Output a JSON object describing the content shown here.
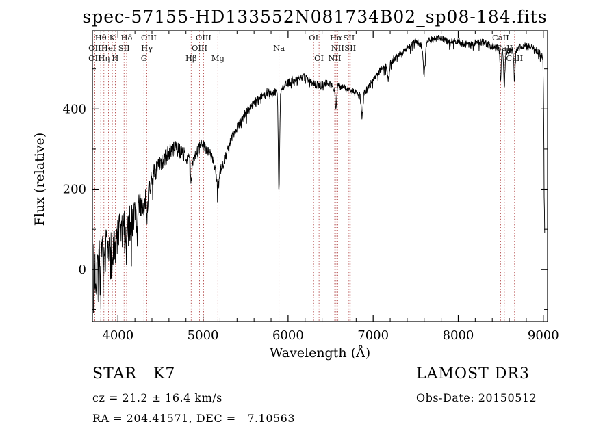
{
  "title": "spec-57155-HD133552N081734B02_sp08-184.fits",
  "colors": {
    "spectrum_line": "#000000",
    "marker_line": "#b24747",
    "label_text": "#1a1a1a",
    "axis": "#000000",
    "background": "#ffffff"
  },
  "chart_data": {
    "type": "line",
    "title": "spec-57155-HD133552N081734B02_sp08-184.fits",
    "xlabel": "Wavelength (Å)",
    "ylabel": "Flux (relative)",
    "xlim": [
      3700,
      9050
    ],
    "ylim": [
      -130,
      595
    ],
    "xticks": [
      4000,
      5000,
      6000,
      7000,
      8000,
      9000
    ],
    "yticks": [
      0,
      200,
      400
    ],
    "grid": false,
    "legend": "none",
    "series_name": "flux",
    "continuum_anchors": [
      [
        3712,
        2
      ],
      [
        3750,
        12
      ],
      [
        3800,
        28
      ],
      [
        3850,
        45
      ],
      [
        3900,
        58
      ],
      [
        3950,
        70
      ],
      [
        4000,
        95
      ],
      [
        4050,
        105
      ],
      [
        4100,
        112
      ],
      [
        4150,
        128
      ],
      [
        4200,
        145
      ],
      [
        4250,
        158
      ],
      [
        4300,
        170
      ],
      [
        4350,
        190
      ],
      [
        4400,
        228
      ],
      [
        4450,
        248
      ],
      [
        4500,
        260
      ],
      [
        4550,
        275
      ],
      [
        4600,
        292
      ],
      [
        4650,
        300
      ],
      [
        4700,
        300
      ],
      [
        4750,
        292
      ],
      [
        4800,
        282
      ],
      [
        4861,
        268
      ],
      [
        4920,
        290
      ],
      [
        4980,
        310
      ],
      [
        5040,
        302
      ],
      [
        5100,
        282
      ],
      [
        5160,
        245
      ],
      [
        5220,
        252
      ],
      [
        5280,
        292
      ],
      [
        5350,
        335
      ],
      [
        5420,
        362
      ],
      [
        5500,
        390
      ],
      [
        5580,
        410
      ],
      [
        5660,
        426
      ],
      [
        5740,
        442
      ],
      [
        5820,
        438
      ],
      [
        5900,
        448
      ],
      [
        5980,
        462
      ],
      [
        6060,
        472
      ],
      [
        6140,
        480
      ],
      [
        6220,
        477
      ],
      [
        6300,
        463
      ],
      [
        6380,
        458
      ],
      [
        6460,
        468
      ],
      [
        6540,
        452
      ],
      [
        6620,
        457
      ],
      [
        6700,
        448
      ],
      [
        6780,
        442
      ],
      [
        6860,
        432
      ],
      [
        6940,
        452
      ],
      [
        7020,
        482
      ],
      [
        7100,
        500
      ],
      [
        7180,
        512
      ],
      [
        7260,
        528
      ],
      [
        7340,
        540
      ],
      [
        7420,
        556
      ],
      [
        7500,
        568
      ],
      [
        7580,
        558
      ],
      [
        7660,
        570
      ],
      [
        7740,
        577
      ],
      [
        7820,
        575
      ],
      [
        7900,
        565
      ],
      [
        7980,
        571
      ],
      [
        8060,
        563
      ],
      [
        8140,
        559
      ],
      [
        8220,
        566
      ],
      [
        8300,
        566
      ],
      [
        8380,
        558
      ],
      [
        8460,
        553
      ],
      [
        8540,
        543
      ],
      [
        8620,
        544
      ],
      [
        8700,
        551
      ],
      [
        8780,
        557
      ],
      [
        8860,
        555
      ],
      [
        8940,
        543
      ],
      [
        8995,
        530
      ],
      [
        9003,
        420
      ],
      [
        9010,
        200
      ],
      [
        9016,
        95
      ]
    ],
    "absorption_features": [
      {
        "name": "Htheta",
        "center": 3798,
        "depth": 35,
        "width": 6
      },
      {
        "name": "Heta",
        "center": 3835,
        "depth": 35,
        "width": 6
      },
      {
        "name": "HeI",
        "center": 3889,
        "depth": 38,
        "width": 6
      },
      {
        "name": "CaII-K",
        "center": 3934,
        "depth": 55,
        "width": 7
      },
      {
        "name": "CaII-H",
        "center": 3969,
        "depth": 55,
        "width": 7
      },
      {
        "name": "Hdelta",
        "center": 4102,
        "depth": 50,
        "width": 7
      },
      {
        "name": "CaI",
        "center": 4226,
        "depth": 55,
        "width": 6
      },
      {
        "name": "G-band",
        "center": 4306,
        "depth": 40,
        "width": 8
      },
      {
        "name": "Hgamma",
        "center": 4340,
        "depth": 55,
        "width": 7
      },
      {
        "name": "Hbeta",
        "center": 4861,
        "depth": 55,
        "width": 7
      },
      {
        "name": "Mg-b",
        "center": 5175,
        "depth": 45,
        "width": 14
      },
      {
        "name": "Na-D",
        "center": 5893,
        "depth": 255,
        "width": 8
      },
      {
        "name": "Halpha",
        "center": 6563,
        "depth": 55,
        "width": 7
      },
      {
        "name": "B-band",
        "center": 6870,
        "depth": 55,
        "width": 10
      },
      {
        "name": "telluric",
        "center": 7180,
        "depth": 40,
        "width": 10
      },
      {
        "name": "A-band",
        "center": 7600,
        "depth": 75,
        "width": 12
      },
      {
        "name": "CaII-8498",
        "center": 8498,
        "depth": 70,
        "width": 7
      },
      {
        "name": "CaII-8542",
        "center": 8542,
        "depth": 90,
        "width": 7
      },
      {
        "name": "CaII-8662",
        "center": 8662,
        "depth": 80,
        "width": 7
      }
    ],
    "noise": {
      "blue_amp": 55,
      "red_amp": 9,
      "decay": 600
    },
    "spectral_lines": [
      {
        "wavelength": 3727,
        "label": "OII",
        "row": 2
      },
      {
        "wavelength": 3727,
        "label": "OII",
        "row": 3
      },
      {
        "wavelength": 3798,
        "label": "Hθ",
        "row": 1
      },
      {
        "wavelength": 3835,
        "label": "Hη",
        "row": 3
      },
      {
        "wavelength": 3889,
        "label": "HeI",
        "row": 2
      },
      {
        "wavelength": 3934,
        "label": "K",
        "row": 1
      },
      {
        "wavelength": 3969,
        "label": "H",
        "row": 3
      },
      {
        "wavelength": 4072,
        "label": "SII",
        "row": 2
      },
      {
        "wavelength": 4102,
        "label": "Hδ",
        "row": 1
      },
      {
        "wavelength": 4306,
        "label": "G",
        "row": 3
      },
      {
        "wavelength": 4340,
        "label": "Hγ",
        "row": 2
      },
      {
        "wavelength": 4363,
        "label": "OIII",
        "row": 1
      },
      {
        "wavelength": 4861,
        "label": "Hβ",
        "row": 3
      },
      {
        "wavelength": 4959,
        "label": "OIII",
        "row": 2
      },
      {
        "wavelength": 5007,
        "label": "OIII",
        "row": 1
      },
      {
        "wavelength": 5175,
        "label": "Mg",
        "row": 3
      },
      {
        "wavelength": 5893,
        "label": "Na",
        "row": 2
      },
      {
        "wavelength": 6300,
        "label": "OI",
        "row": 1
      },
      {
        "wavelength": 6364,
        "label": "OI",
        "row": 3
      },
      {
        "wavelength": 6548,
        "label": "NII",
        "row": 3
      },
      {
        "wavelength": 6563,
        "label": "Hα",
        "row": 1
      },
      {
        "wavelength": 6583,
        "label": "NII",
        "row": 2
      },
      {
        "wavelength": 6716,
        "label": "SII",
        "row": 1
      },
      {
        "wavelength": 6731,
        "label": "SII",
        "row": 2
      },
      {
        "wavelength": 8498,
        "label": "CaII",
        "row": 1
      },
      {
        "wavelength": 8542,
        "label": "CaII",
        "row": 2
      },
      {
        "wavelength": 8662,
        "label": "CaII",
        "row": 3
      }
    ]
  },
  "annotations": {
    "class_label": "STAR   K7",
    "survey": "LAMOST DR3",
    "cz": "cz = 21.2 ± 16.4 km/s",
    "obs_date": "Obs-Date: 20150512",
    "radec": "RA = 204.41571, DEC =   7.10563"
  }
}
